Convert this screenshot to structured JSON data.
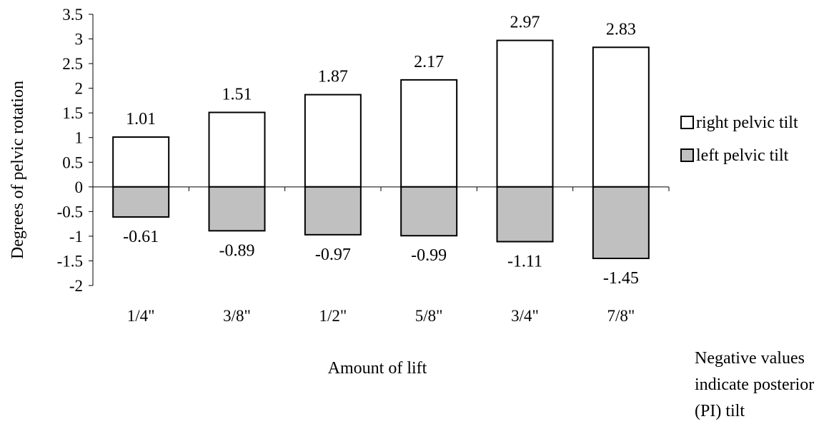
{
  "chart_data": {
    "type": "bar",
    "categories": [
      "1/4\"",
      "3/8\"",
      "1/2\"",
      "5/8\"",
      "3/4\"",
      "7/8\""
    ],
    "series": [
      {
        "name": "right pelvic tilt",
        "values": [
          1.01,
          1.51,
          1.87,
          2.17,
          2.97,
          2.83
        ],
        "color": "#ffffff"
      },
      {
        "name": "left pelvic tilt",
        "values": [
          -0.61,
          -0.89,
          -0.97,
          -0.99,
          -1.11,
          -1.45
        ],
        "color": "#c0c0c0"
      }
    ],
    "data_labels": {
      "right": [
        "1.01",
        "1.51",
        "1.87",
        "2.17",
        "2.97",
        "2.83"
      ],
      "left": [
        "-0.61",
        "-0.89",
        "-0.97",
        "-0.99",
        "-1.11",
        "-1.45"
      ]
    },
    "title": "",
    "xlabel": "Amount of lift",
    "ylabel": "Degrees of pelvic rotation",
    "ylim": [
      -2,
      3.5
    ],
    "yticks": [
      3.5,
      3,
      2.5,
      2,
      1.5,
      1,
      0.5,
      0,
      -0.5,
      -1,
      -1.5,
      -2
    ],
    "ytick_labels": [
      "3.5",
      "3",
      "2.5",
      "2",
      "1.5",
      "1",
      "0.5",
      "0",
      "-0.5",
      "-1",
      "-1.5",
      "-2"
    ],
    "grid": false,
    "legend_position": "right",
    "bar_stacking": "diverging"
  },
  "note": "Negative values\nindicate posterior\n(PI) tilt"
}
